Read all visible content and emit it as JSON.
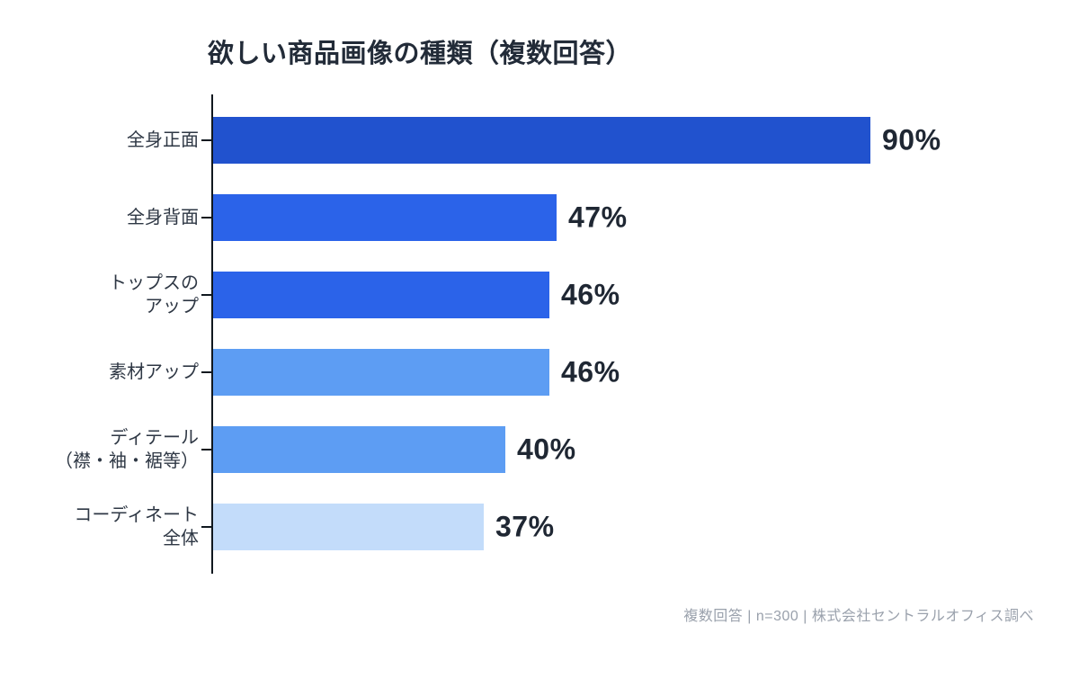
{
  "page": {
    "background": "#ffffff"
  },
  "chart_data": {
    "type": "bar",
    "orientation": "horizontal",
    "title": "欲しい商品画像の種類（複数回答）",
    "categories": [
      "全身正面",
      "全身背面",
      "トップスの\nアップ",
      "素材アップ",
      "ディテール\n（襟・袖・裾等）",
      "コーディネート\n全体"
    ],
    "values": [
      90,
      47,
      46,
      46,
      40,
      37
    ],
    "value_labels": [
      "90%",
      "47%",
      "46%",
      "46%",
      "40%",
      "37%"
    ],
    "bar_colors": [
      "#2152ce",
      "#2b63e9",
      "#2b63e9",
      "#5d9df3",
      "#5d9df3",
      "#c3dcfa"
    ],
    "xlim": [
      0,
      100
    ],
    "grid": false,
    "legend": null,
    "xlabel": "",
    "ylabel": ""
  },
  "footer": {
    "note": "複数回答 | n=300 | 株式会社セントラルオフィス調べ"
  },
  "colors": {
    "title": "#222b38",
    "category_label": "#2e3744",
    "value_label": "#1f2733",
    "axis": "#10181f",
    "footer": "#9aa1ac"
  }
}
